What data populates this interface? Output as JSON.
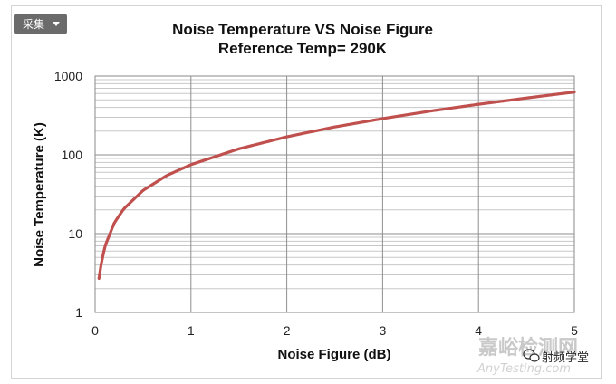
{
  "toolbar": {
    "collect_label": "采集"
  },
  "chart_data": {
    "type": "line",
    "title": "Noise Temperature VS Noise Figure",
    "subtitle": "Reference Temp= 290K",
    "xlabel": "Noise Figure (dB)",
    "ylabel": "Noise Temperature (K)",
    "xlim": [
      0,
      5
    ],
    "ylim": [
      1,
      1000
    ],
    "yscale": "log",
    "grid": true,
    "x_ticks": [
      "0",
      "1",
      "2",
      "3",
      "4",
      "5"
    ],
    "y_ticks": [
      "1",
      "10",
      "100",
      "1000"
    ],
    "series": [
      {
        "color": "#c0504d",
        "x": [
          0.04,
          0.05,
          0.1,
          0.2,
          0.3,
          0.5,
          0.75,
          1,
          1.5,
          2,
          2.5,
          3,
          3.5,
          4,
          4.5,
          5
        ],
        "y": [
          2.7,
          3.4,
          6.8,
          13.7,
          20.7,
          35.4,
          54.9,
          75.1,
          119.3,
          169.6,
          226.1,
          288.6,
          359.9,
          438.4,
          526.5,
          627.1
        ]
      }
    ]
  },
  "watermark": {
    "site_name": "嘉峪检测网",
    "site_url": "AnyTesting.com",
    "account": "射频学堂"
  }
}
